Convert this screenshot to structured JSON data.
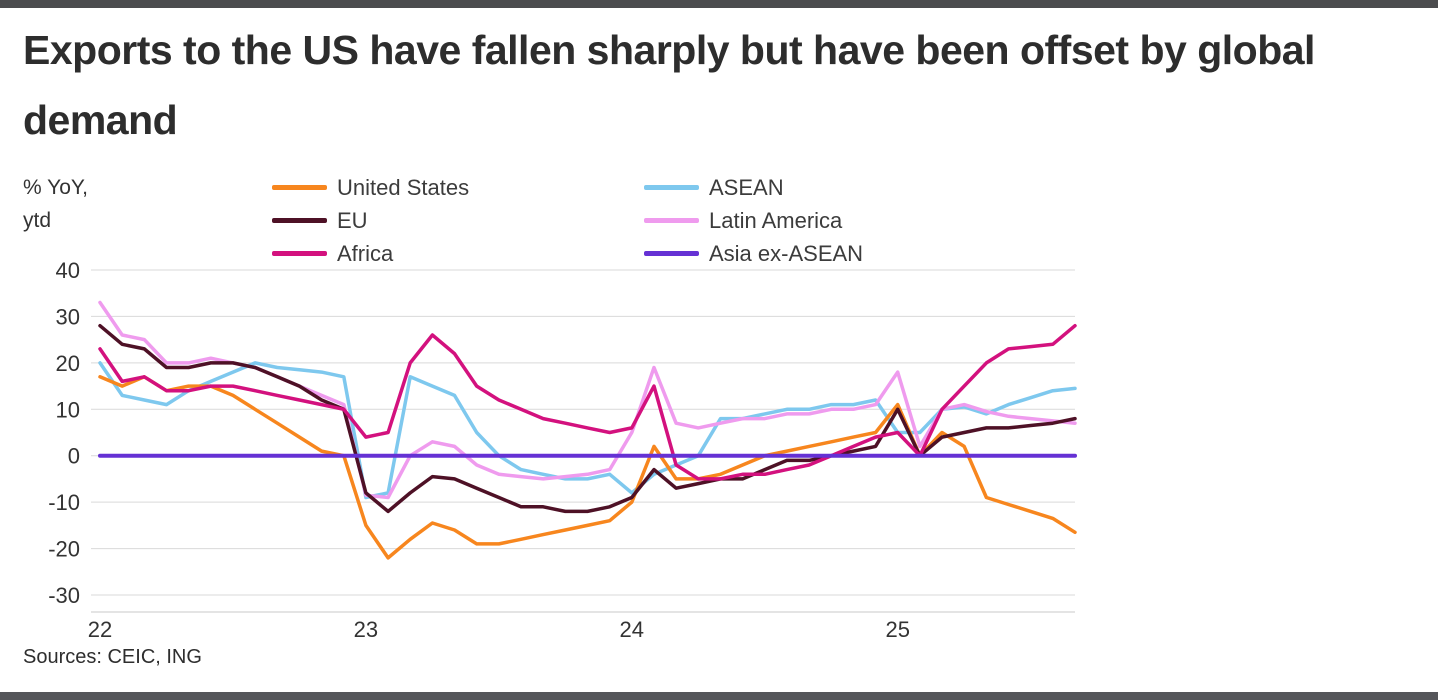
{
  "page": {
    "top_bar_color": "#4b4c4e",
    "bottom_bar_color": "#55565a"
  },
  "header": {
    "title": "Exports to the US have fallen sharply but have been offset by global demand"
  },
  "chart": {
    "y_axis_unit_line1": "% YoY,",
    "y_axis_unit_line2": "ytd",
    "sources": "Sources: CEIC, ING"
  },
  "chart_data": {
    "type": "line",
    "title": "Exports to the US have fallen sharply but have been offset by global demand",
    "xlabel": "",
    "ylabel": "% YoY, ytd",
    "ylim": [
      -30,
      40
    ],
    "yticks": [
      40,
      30,
      20,
      10,
      0,
      -10,
      -20,
      -30
    ],
    "grid": "horizontal",
    "legend_position": "top",
    "n_points": 45,
    "x_unit": "monthly points, Jan 2022 - Sep 2025",
    "x_tick_labels": [
      {
        "index": 0,
        "label": "22"
      },
      {
        "index": 12,
        "label": "23"
      },
      {
        "index": 24,
        "label": "24"
      },
      {
        "index": 36,
        "label": "25"
      }
    ],
    "series": [
      {
        "name": "United States",
        "color": "#f7861e",
        "values": [
          17,
          15,
          17,
          14,
          15,
          15,
          13,
          10,
          7,
          4,
          1,
          0,
          -15,
          -22,
          -18,
          -14.5,
          -16,
          -19,
          -19,
          -18,
          -17,
          -16,
          -15,
          -14,
          -10,
          2,
          -5,
          -5,
          -4,
          -2,
          0,
          1,
          2,
          3,
          4,
          5,
          11,
          0,
          5,
          2,
          -9,
          -10.5,
          -12,
          -13.5,
          -16.5
        ]
      },
      {
        "name": "ASEAN",
        "color": "#7ec8ee",
        "values": [
          20,
          13,
          12,
          11,
          14,
          16,
          18,
          20,
          19,
          18.5,
          18,
          17,
          -9,
          -8,
          17,
          15,
          13,
          5,
          0,
          -3,
          -4,
          -5,
          -5,
          -4,
          -8,
          -4,
          -2,
          0,
          8,
          8,
          9,
          10,
          10,
          11,
          11,
          12,
          5,
          5,
          10,
          10.5,
          9,
          11,
          12.5,
          14,
          14.5
        ]
      },
      {
        "name": "EU",
        "color": "#4e1126",
        "values": [
          28,
          24,
          23,
          19,
          19,
          20,
          20,
          19,
          17,
          15,
          12,
          10,
          -8,
          -12,
          -8,
          -4.5,
          -5,
          -7,
          -9,
          -11,
          -11,
          -12,
          -12,
          -11,
          -9,
          -3,
          -7,
          -6,
          -5,
          -5,
          -3,
          -1,
          -1,
          0,
          1,
          2,
          10,
          0,
          4,
          5,
          6,
          6,
          6.5,
          7,
          8
        ]
      },
      {
        "name": "Latin America",
        "color": "#ef9bee",
        "values": [
          33,
          26,
          25,
          20,
          20,
          21,
          20,
          19,
          17,
          15,
          13,
          11,
          -8.5,
          -9,
          0,
          3,
          2,
          -2,
          -4,
          -4.5,
          -5,
          -4.5,
          -4,
          -3,
          5,
          19,
          7,
          6,
          7,
          8,
          8,
          9,
          9,
          10,
          10,
          11,
          18,
          2,
          10,
          11,
          9.5,
          8.5,
          8,
          7.5,
          7
        ]
      },
      {
        "name": "Africa",
        "color": "#d3117e",
        "values": [
          23,
          16,
          17,
          14,
          14,
          15,
          15,
          14,
          13,
          12,
          11,
          10,
          4,
          5,
          20,
          26,
          22,
          15,
          12,
          10,
          8,
          7,
          6,
          5,
          6,
          15,
          -2,
          -5,
          -5,
          -4,
          -4,
          -3,
          -2,
          0,
          2,
          4,
          5,
          0,
          10,
          15,
          20,
          23,
          23.5,
          24,
          28
        ]
      },
      {
        "name": "Asia ex-ASEAN",
        "color": "#6531d4",
        "values": [
          0,
          0,
          0,
          0,
          0,
          0,
          0,
          0,
          0,
          0,
          0,
          0,
          0,
          0,
          0,
          0,
          0,
          0,
          0,
          0,
          0,
          0,
          0,
          0,
          0,
          0,
          0,
          0,
          0,
          0,
          0,
          0,
          0,
          0,
          0,
          0,
          0,
          0,
          0,
          0,
          0,
          0,
          0,
          0,
          0
        ]
      }
    ]
  }
}
